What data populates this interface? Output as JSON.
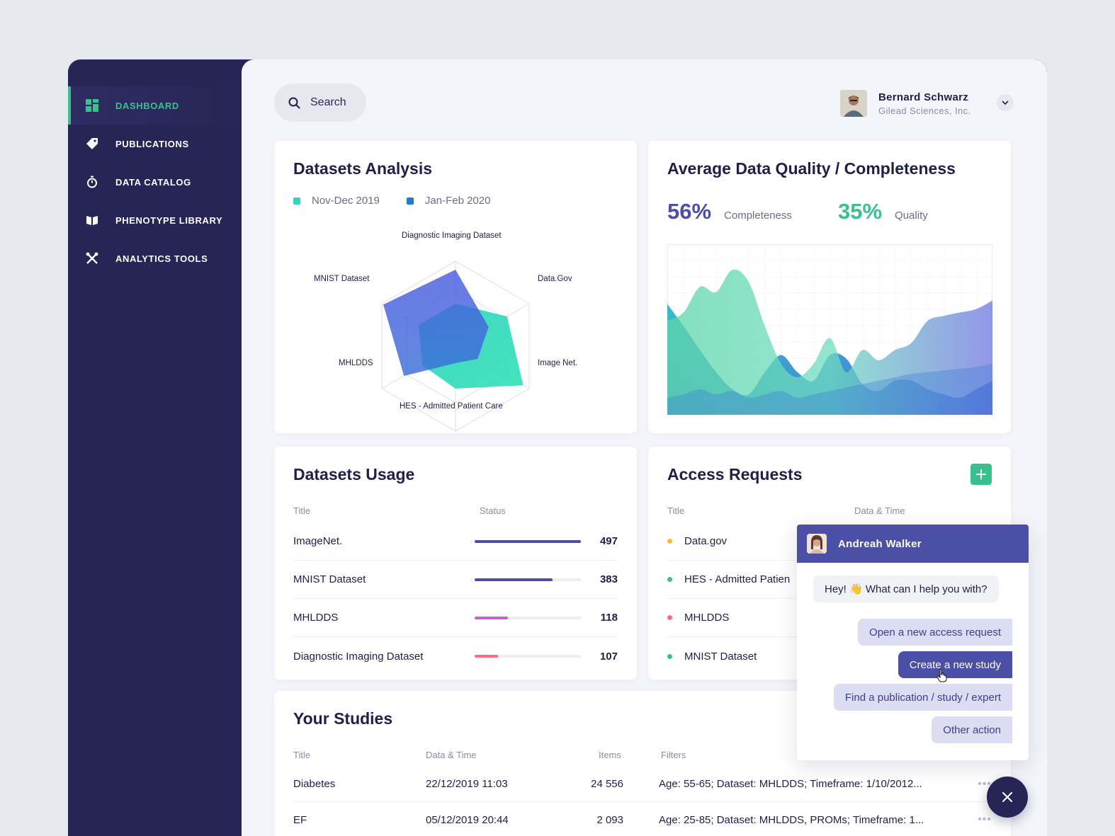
{
  "sidebar": {
    "items": [
      {
        "label": "DASHBOARD",
        "icon": "dashboard-icon",
        "active": true
      },
      {
        "label": "PUBLICATIONS",
        "icon": "tag-icon"
      },
      {
        "label": "DATA CATALOG",
        "icon": "stopwatch-icon"
      },
      {
        "label": "PHENOTYPE LIBRARY",
        "icon": "book-icon"
      },
      {
        "label": "ANALYTICS TOOLS",
        "icon": "tools-icon"
      }
    ]
  },
  "header": {
    "search_label": "Search",
    "user_name": "Bernard Schwarz",
    "user_company": "Gilead Sciences, Inc."
  },
  "colors": {
    "accent_green": "#3bbf8f",
    "navy": "#262556",
    "indigo": "#4b4fa6",
    "teal": "#2fd5bf",
    "blue": "#1f7ad0"
  },
  "datasets_analysis": {
    "title": "Datasets Analysis",
    "legend": [
      {
        "label": "Nov-Dec 2019",
        "color": "#2fd5bf"
      },
      {
        "label": "Jan-Feb 2020",
        "color": "#1f7ad0"
      }
    ],
    "chart_data": {
      "type": "radar",
      "axes": [
        "Diagnostic Imaging Dataset",
        "Data.Gov",
        "Image Net.",
        "HES - Admitted Patient Care",
        "MHLDDS",
        "MNIST Dataset"
      ],
      "rmax": 1,
      "series": [
        {
          "name": "Nov-Dec 2019",
          "values": [
            0.5,
            0.7,
            0.92,
            0.5,
            0.45,
            0.5
          ]
        },
        {
          "name": "Jan-Feb 2020",
          "values": [
            0.9,
            0.45,
            0.3,
            0.2,
            0.7,
            0.98
          ]
        }
      ]
    }
  },
  "quality": {
    "title": "Average Data Quality / Completeness",
    "completeness_value": "56%",
    "completeness_label": "Completeness",
    "quality_value": "35%",
    "quality_label": "Quality",
    "chart_data": {
      "type": "area",
      "x": [
        0,
        1,
        2,
        3,
        4,
        5,
        6,
        7,
        8,
        9,
        10,
        11,
        12,
        13,
        14,
        15,
        16,
        17,
        18,
        19,
        20
      ],
      "ylim": [
        0,
        1
      ],
      "series": [
        {
          "values": [
            0.65,
            0.52,
            0.38,
            0.25,
            0.15,
            0.12,
            0.25,
            0.35,
            0.25,
            0.2,
            0.35,
            0.33,
            0.18,
            0.14,
            0.2,
            0.2,
            0.15,
            0.12,
            0.1,
            0.15,
            0.2
          ]
        },
        {
          "values": [
            0.55,
            0.6,
            0.75,
            0.72,
            0.85,
            0.78,
            0.52,
            0.3,
            0.22,
            0.3,
            0.45,
            0.25,
            0.38,
            0.32,
            0.38,
            0.42,
            0.55,
            0.58,
            0.6,
            0.62,
            0.67
          ]
        },
        {
          "values": [
            0.1,
            0.12,
            0.15,
            0.12,
            0.14,
            0.1,
            0.12,
            0.14,
            0.1,
            0.12,
            0.14,
            0.16,
            0.18,
            0.2,
            0.22,
            0.24,
            0.25,
            0.26,
            0.27,
            0.28,
            0.3
          ]
        }
      ]
    }
  },
  "usage": {
    "title": "Datasets Usage",
    "col_title": "Title",
    "col_status": "Status",
    "rows": [
      {
        "title": "ImageNet.",
        "value": "497",
        "fill": 1.0,
        "color": "#4b4fa6"
      },
      {
        "title": "MNIST Dataset",
        "value": "383",
        "fill": 0.73,
        "color": "#4b4fa6"
      },
      {
        "title": "MHLDDS",
        "value": "118",
        "fill": 0.31,
        "color": "#c562c7"
      },
      {
        "title": "Diagnostic Imaging Dataset",
        "value": "107",
        "fill": 0.22,
        "color": "#ff6b81"
      }
    ]
  },
  "access": {
    "title": "Access Requests",
    "col_title": "Title",
    "col_date": "Data & Time",
    "rows": [
      {
        "title": "Data.gov",
        "color": "#ffb830"
      },
      {
        "title": "HES - Admitted Patien",
        "color": "#3bbf8f"
      },
      {
        "title": "MHLDDS",
        "color": "#ff6b81"
      },
      {
        "title": "MNIST Dataset",
        "color": "#3bbf8f"
      }
    ]
  },
  "studies": {
    "title": "Your Studies",
    "cols": [
      "Title",
      "Data & Time",
      "Items",
      "Filters"
    ],
    "rows": [
      {
        "title": "Diabetes",
        "date": "22/12/2019 11:03",
        "items": "24 556",
        "filters": "Age: 55-65; Dataset: MHLDDS; Timeframe: 1/10/2012..."
      },
      {
        "title": "EF",
        "date": "05/12/2019 20:44",
        "items": "2 093",
        "filters": "Age: 25-85; Dataset: MHLDDS, PROMs; Timeframe: 1..."
      }
    ]
  },
  "chat": {
    "name": "Andreah Walker",
    "greeting": "Hey! 👋 What can I help you with?",
    "options": [
      "Open a new access request",
      "Create a new study",
      "Find a publication / study / expert",
      "Other action"
    ]
  }
}
